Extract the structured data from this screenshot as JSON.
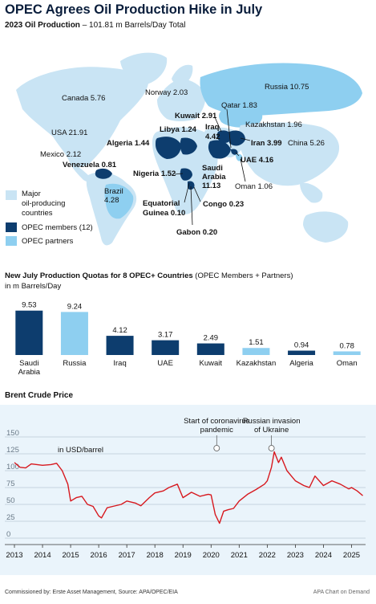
{
  "title": "OPEC Agrees Oil Production Hike in July",
  "subtitle_bold": "2023 Oil Production",
  "subtitle_rest": " – 101.81 m Barrels/Day Total",
  "map_labels": {
    "canada": "Canada 5.76",
    "usa": "USA 21.91",
    "mexico": "Mexico 2.12",
    "norway": "Norway 2.03",
    "russia": "Russia 10.75",
    "qatar": "Qatar 1.83",
    "kuwait": "Kuwait 2.91",
    "iraq_name": "Iraq",
    "iraq_val": "4.42",
    "libya": "Libya 1.24",
    "kazakhstan": "Kazakhstan 1.96",
    "algeria": "Algeria 1.44",
    "iran": "Iran 3.99",
    "china": "China 5.26",
    "uae": "UAE 4.16",
    "venezuela": "Venezuela 0.81",
    "nigeria": "Nigeria 1.52",
    "saudi_1": "Saudi",
    "saudi_2": "Arabia",
    "saudi_3": "11.13",
    "oman": "Oman 1.06",
    "brazil_name": "Brazil",
    "brazil_val": "4.28",
    "eq_guinea_1": "Equatorial",
    "eq_guinea_2": "Guinea 0.10",
    "congo": "Congo 0.23",
    "gabon": "Gabon 0.20"
  },
  "legend": {
    "major_1": "Major",
    "major_2": "oil-producing",
    "major_3": "countries",
    "opec_members": "OPEC members (12)",
    "opec_partners": "OPEC partners"
  },
  "colors": {
    "navy": "#0d3d6e",
    "light_blue": "#8ecff0",
    "pale_blue": "#c9e4f4",
    "red": "#d7191f",
    "panel": "#eaf4fb"
  },
  "quota_title_bold": "New July Production Quotas for 8 OPEC+ Countries",
  "quota_title_rest": " (OPEC Members + Partners)",
  "quota_unit": "in m Barrels/Day",
  "brent_title": "Brent Crude Price",
  "footer_left": "Commissioned by: Erste Asset Management, Source: APA/OPEC/EIA",
  "footer_right": "APA Chart on Demand",
  "chart_data": [
    {
      "type": "bar",
      "title": "New July Production Quotas for 8 OPEC+ Countries (OPEC Members + Partners)",
      "ylabel": "in m Barrels/Day",
      "categories": [
        "Saudi Arabia",
        "Russia",
        "Iraq",
        "UAE",
        "Kuwait",
        "Kazakhstan",
        "Algeria",
        "Oman"
      ],
      "tick_labels": [
        [
          "Saudi",
          "Arabia"
        ],
        [
          "Russia"
        ],
        [
          "Iraq"
        ],
        [
          "UAE"
        ],
        [
          "Kuwait"
        ],
        [
          "Kazakhstan"
        ],
        [
          "Algeria"
        ],
        [
          "Oman"
        ]
      ],
      "values": [
        9.53,
        9.24,
        4.12,
        3.17,
        2.49,
        1.51,
        0.94,
        0.78
      ],
      "value_labels": [
        "9.53",
        "9.24",
        "4.12",
        "3.17",
        "2.49",
        "1.51",
        "0.94",
        "0.78"
      ],
      "group": [
        "member",
        "partner",
        "member",
        "member",
        "member",
        "partner",
        "member",
        "partner"
      ],
      "ylim": [
        0,
        10
      ]
    },
    {
      "type": "line",
      "title": "Brent Crude Price",
      "ylabel": "in USD/barrel",
      "ylim": [
        0,
        150
      ],
      "yticks": [
        0,
        25,
        50,
        75,
        100,
        125,
        150
      ],
      "xlim": [
        2013,
        2025.5
      ],
      "xticks": [
        2013,
        2014,
        2015,
        2016,
        2017,
        2018,
        2019,
        2020,
        2021,
        2022,
        2023,
        2024,
        2025
      ],
      "grid": true,
      "series": [
        {
          "x": [
            2013.0,
            2013.2,
            2013.4,
            2013.6,
            2013.8,
            2014.0,
            2014.3,
            2014.5,
            2014.7,
            2014.9,
            2015.0,
            2015.2,
            2015.4,
            2015.6,
            2015.8,
            2016.0,
            2016.1,
            2016.3,
            2016.5,
            2016.8,
            2017.0,
            2017.3,
            2017.5,
            2017.8,
            2018.0,
            2018.3,
            2018.5,
            2018.8,
            2019.0,
            2019.3,
            2019.6,
            2019.9,
            2020.0,
            2020.15,
            2020.3,
            2020.45,
            2020.6,
            2020.8,
            2021.0,
            2021.3,
            2021.6,
            2021.9,
            2022.0,
            2022.15,
            2022.25,
            2022.4,
            2022.5,
            2022.7,
            2022.9,
            2023.0,
            2023.3,
            2023.5,
            2023.7,
            2024.0,
            2024.3,
            2024.6,
            2024.9,
            2025.0,
            2025.2,
            2025.4
          ],
          "y": [
            112,
            105,
            104,
            110,
            109,
            108,
            109,
            111,
            100,
            80,
            55,
            60,
            62,
            50,
            47,
            33,
            30,
            45,
            47,
            50,
            55,
            52,
            48,
            60,
            67,
            70,
            75,
            80,
            60,
            68,
            62,
            65,
            64,
            35,
            22,
            40,
            42,
            44,
            55,
            65,
            72,
            80,
            85,
            105,
            128,
            112,
            120,
            100,
            90,
            85,
            78,
            75,
            92,
            78,
            85,
            80,
            73,
            75,
            70,
            63
          ]
        }
      ],
      "annotations": [
        {
          "x": 2020.2,
          "text": "Start of coronavirus pandemic",
          "lines": [
            "Start of coronavirus",
            "pandemic"
          ]
        },
        {
          "x": 2022.15,
          "text": "Russian invasion of Ukraine",
          "lines": [
            "Russian invasion",
            "of Ukraine"
          ]
        }
      ]
    }
  ]
}
